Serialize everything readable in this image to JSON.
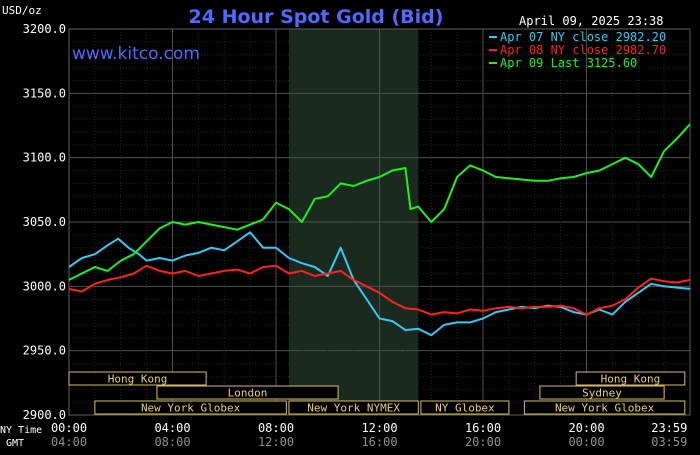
{
  "chart_data": {
    "type": "line",
    "title": "24 Hour Spot Gold (Bid)",
    "site": "www.kitco.com",
    "timestamp": "April 09, 2025 23:38",
    "ylabel": "USD/oz",
    "ylim": [
      2900,
      3200
    ],
    "yticks": [
      "3200.0",
      "3150.0",
      "3100.0",
      "3050.0",
      "3000.0",
      "2950.0",
      "2900.0"
    ],
    "xlim": [
      0,
      24
    ],
    "xticks_ny": [
      "00:00",
      "04:00",
      "08:00",
      "12:00",
      "16:00",
      "20:00",
      "23:59"
    ],
    "xticks_gmt": [
      "04:00",
      "08:00",
      "12:00",
      "16:00",
      "20:00",
      "00:00",
      "03:59"
    ],
    "row_labels": {
      "ny": "NY Time",
      "gmt": "GMT"
    },
    "grid": true,
    "highlight_range": [
      8.5,
      13.5
    ],
    "legend_position": "top-right",
    "legend": [
      {
        "text": "Apr 07 NY close 2982.20",
        "color": "#38c8f0"
      },
      {
        "text": "Apr 08 NY close 2982.70",
        "color": "#ff2020"
      },
      {
        "text": "Apr 09 Last 3125.60",
        "color": "#20f020"
      }
    ],
    "sessions": [
      {
        "label": "Hong Kong",
        "start": 0,
        "end": 5.3,
        "row": 0
      },
      {
        "label": "London",
        "start": 3.4,
        "end": 10.4,
        "row": 1
      },
      {
        "label": "New York Globex",
        "start": 1.0,
        "end": 8.4,
        "row": 2
      },
      {
        "label": "New York NYMEX",
        "start": 8.5,
        "end": 13.5,
        "row": 2
      },
      {
        "label": "NY Globex",
        "start": 13.6,
        "end": 17.0,
        "row": 2
      },
      {
        "label": "Hong Kong",
        "start": 19.6,
        "end": 23.8,
        "row": 0
      },
      {
        "label": "Sydney",
        "start": 18.2,
        "end": 23.0,
        "row": 1
      },
      {
        "label": "New York Globex",
        "start": 17.6,
        "end": 23.8,
        "row": 2
      }
    ],
    "series": [
      {
        "color": "#38c8f0",
        "x": [
          0,
          0.5,
          1,
          1.5,
          1.9,
          2.3,
          2.7,
          3,
          3.5,
          4,
          4.5,
          5,
          5.5,
          6,
          6.5,
          7,
          7.5,
          8,
          8.5,
          9,
          9.5,
          10,
          10.5,
          11,
          11.5,
          12,
          12.5,
          13,
          13.5,
          14,
          14.5,
          15,
          15.5,
          16,
          16.5,
          17,
          17.5,
          18,
          18.5,
          19,
          19.5,
          20,
          20.5,
          21,
          21.5,
          22,
          22.5,
          23,
          23.5,
          24
        ],
        "y": [
          3015,
          3022,
          3025,
          3032,
          3037,
          3030,
          3025,
          3020,
          3022,
          3020,
          3024,
          3026,
          3030,
          3028,
          3035,
          3042,
          3030,
          3030,
          3022,
          3018,
          3015,
          3008,
          3030,
          3005,
          2990,
          2975,
          2973,
          2966,
          2967,
          2962,
          2970,
          2972,
          2972,
          2975,
          2980,
          2982,
          2984,
          2983,
          2985,
          2984,
          2980,
          2978,
          2982,
          2978,
          2988,
          2995,
          3002,
          3000,
          2999,
          2998
        ]
      },
      {
        "color": "#ff2020",
        "x": [
          0,
          0.5,
          1,
          1.5,
          2,
          2.5,
          3,
          3.5,
          4,
          4.5,
          5,
          5.5,
          6,
          6.5,
          7,
          7.5,
          8,
          8.5,
          9,
          9.5,
          10,
          10.5,
          11,
          11.5,
          12,
          12.5,
          13,
          13.5,
          14,
          14.5,
          15,
          15.5,
          16,
          16.5,
          17,
          17.5,
          18,
          18.5,
          19,
          19.5,
          20,
          20.5,
          21,
          21.5,
          22,
          22.5,
          23,
          23.5,
          24
        ],
        "y": [
          2998,
          2996,
          3002,
          3005,
          3007,
          3010,
          3016,
          3012,
          3010,
          3012,
          3008,
          3010,
          3012,
          3013,
          3010,
          3015,
          3016,
          3010,
          3012,
          3008,
          3010,
          3012,
          3005,
          3000,
          2995,
          2988,
          2983,
          2982,
          2978,
          2980,
          2979,
          2982,
          2981,
          2983,
          2984,
          2983,
          2984,
          2984,
          2985,
          2983,
          2978,
          2983,
          2985,
          2990,
          2999,
          3006,
          3004,
          3003,
          3005
        ]
      },
      {
        "color": "#20f020",
        "x": [
          0,
          0.5,
          1,
          1.5,
          2,
          2.5,
          3,
          3.5,
          4,
          4.5,
          5,
          5.5,
          6,
          6.5,
          7,
          7.5,
          8,
          8.5,
          9,
          9.5,
          10,
          10.5,
          11,
          11.5,
          12,
          12.5,
          13,
          13.2,
          13.5,
          14,
          14.5,
          15,
          15.5,
          16,
          16.5,
          17,
          17.5,
          18,
          18.5,
          19,
          19.5,
          20,
          20.5,
          21,
          21.5,
          22,
          22.5,
          23,
          23.5,
          24
        ],
        "y": [
          3005,
          3010,
          3015,
          3012,
          3020,
          3025,
          3035,
          3045,
          3050,
          3048,
          3050,
          3048,
          3046,
          3044,
          3048,
          3052,
          3065,
          3060,
          3050,
          3068,
          3070,
          3080,
          3078,
          3082,
          3085,
          3090,
          3092,
          3060,
          3062,
          3050,
          3060,
          3085,
          3094,
          3090,
          3085,
          3084,
          3083,
          3082,
          3082,
          3084,
          3085,
          3088,
          3090,
          3095,
          3100,
          3095,
          3085,
          3105,
          3115,
          3126
        ]
      }
    ]
  }
}
